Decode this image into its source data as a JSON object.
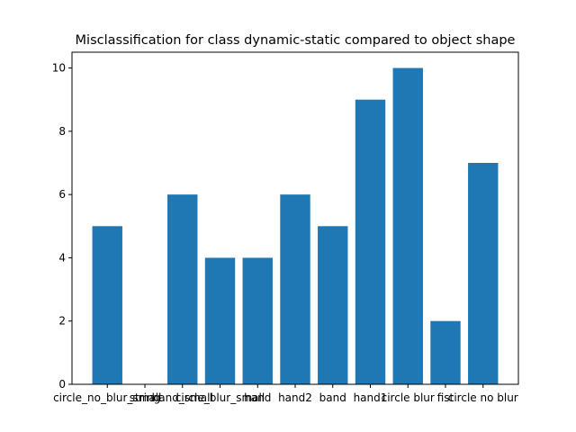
{
  "chart_data": {
    "type": "bar",
    "title": "Misclassification for class dynamic-static compared to object shape",
    "xlabel": "",
    "ylabel": "",
    "categories": [
      "circle_no_blur_small",
      "string",
      "hand_small",
      "circle_blur_small",
      "hand",
      "hand2",
      "band",
      "hand1",
      "circle blur",
      "fist",
      "circle no blur"
    ],
    "values": [
      5,
      0,
      6,
      4,
      4,
      6,
      5,
      9,
      10,
      2,
      7
    ],
    "ylim": [
      0,
      10.5
    ],
    "yticks": [
      0,
      2,
      4,
      6,
      8,
      10
    ],
    "bar_color": "#1f77b4",
    "grid": false,
    "legend": "none"
  }
}
